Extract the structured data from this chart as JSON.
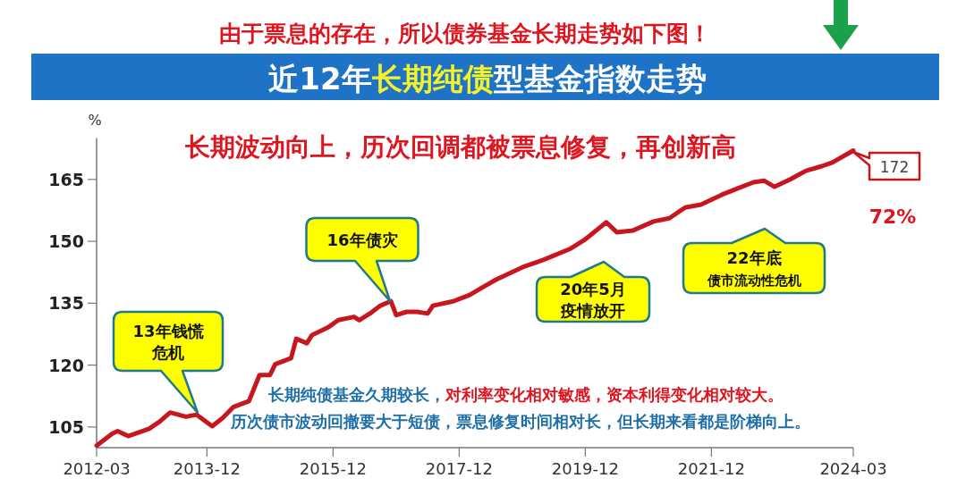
{
  "chart_data": {
    "type": "line",
    "subtitle": "由于票息的存在，所以债券基金长期走势如下图！",
    "title": "近12年**长期纯债**型基金指数走势",
    "ylabel": "%",
    "x": [
      "2012-03",
      "2012-06",
      "2012-07",
      "2012-09",
      "2013-01",
      "2013-03",
      "2013-05",
      "2013-08",
      "2013-10",
      "2014-01",
      "2014-03",
      "2014-05",
      "2014-08",
      "2014-10",
      "2014-12",
      "2015-01",
      "2015-04",
      "2015-05",
      "2015-07",
      "2015-08",
      "2015-11",
      "2016-01",
      "2016-04",
      "2016-05",
      "2016-07",
      "2016-09",
      "2016-11",
      "2016-12",
      "2017-02",
      "2017-04",
      "2017-06",
      "2017-07",
      "2017-11",
      "2018-02",
      "2018-04",
      "2018-07",
      "2018-12",
      "2019-04",
      "2019-09",
      "2019-12",
      "2020-04",
      "2020-06",
      "2020-09",
      "2021-01",
      "2021-04",
      "2021-07",
      "2021-10",
      "2022-02",
      "2022-05",
      "2022-08",
      "2022-10",
      "2022-12",
      "2023-03",
      "2023-06",
      "2023-09",
      "2023-11",
      "2024-03"
    ],
    "series": [
      {
        "color": "#c8161e",
        "values": [
          100.5,
          103.4,
          104.0,
          102.8,
          104.6,
          106.3,
          108.5,
          107.5,
          108.0,
          105.2,
          107.2,
          109.8,
          111.3,
          117.6,
          117.6,
          120.2,
          121.7,
          126.4,
          125.3,
          127.3,
          129.1,
          130.9,
          131.7,
          130.9,
          132.5,
          134.4,
          135.5,
          132.1,
          132.9,
          132.9,
          132.5,
          134.4,
          135.5,
          137.0,
          138.5,
          140.7,
          143.7,
          145.5,
          148.1,
          150.5,
          154.6,
          152.2,
          152.6,
          154.8,
          155.6,
          158.2,
          158.9,
          161.3,
          162.8,
          164.3,
          164.7,
          163.2,
          165.0,
          167.1,
          168.2,
          169.1,
          172
        ]
      }
    ],
    "xlim": [
      "2012-03",
      "2024-03"
    ],
    "xticks": [
      "2012-03",
      "2013-12",
      "2015-12",
      "2017-12",
      "2019-12",
      "2021-12",
      "2024-03"
    ],
    "ylim": [
      100,
      175
    ],
    "yticks": [
      105,
      120,
      135,
      150,
      165
    ],
    "grid": false,
    "marker": "none",
    "line_style": "solid",
    "annotations": [
      "长期波动向上，历次回调都被票息修复，再创新高",
      "13年钱慌危机",
      "16年债灾",
      "20年5月疫情放开",
      "22年底债市流动性危机",
      "172",
      "72%",
      "长期纯债基金久期较长，",
      "对利率变化相对敏感，资本利得变化相对较大。",
      "历次债市波动回撤要大于短债，票息修复时间相对长，但长期来看都是阶梯向上。"
    ]
  }
}
